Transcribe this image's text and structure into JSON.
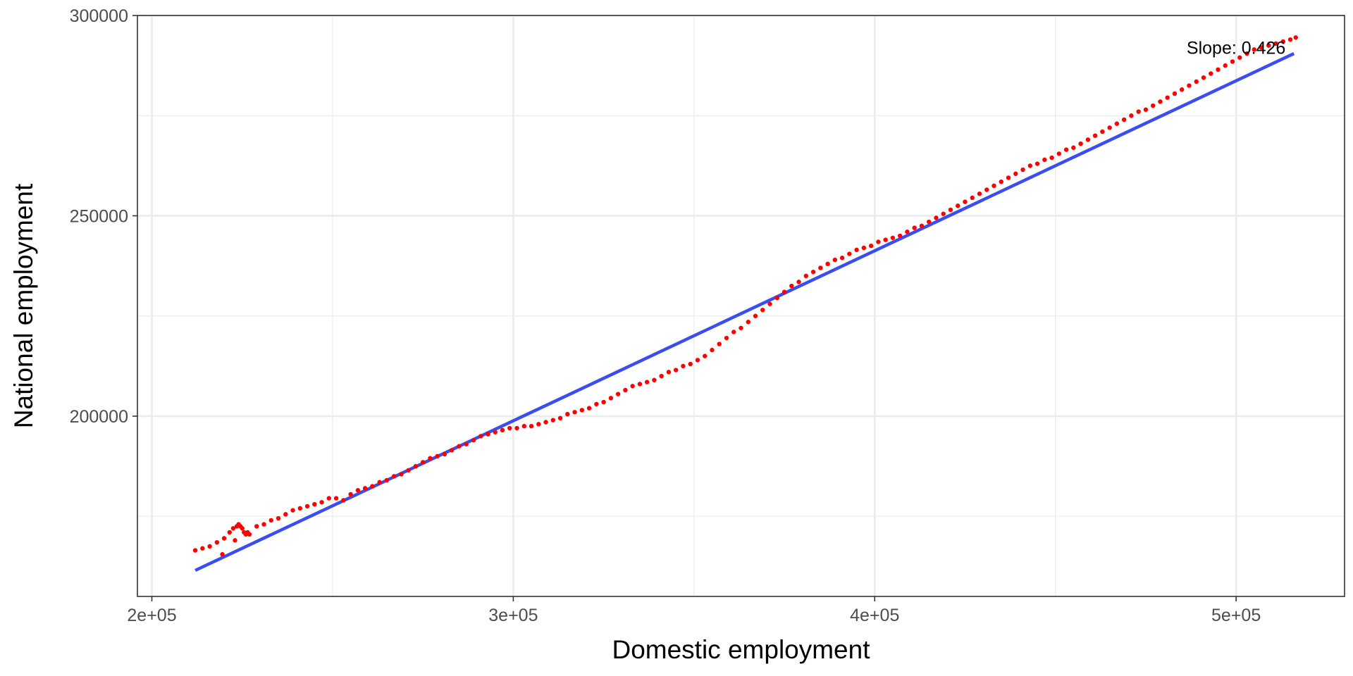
{
  "chart_data": {
    "type": "scatter",
    "title": "",
    "xlabel": "Domestic employment",
    "ylabel": "National employment",
    "xlim": [
      196000,
      530000
    ],
    "ylim": [
      155000,
      300000
    ],
    "x_ticks": [
      200000,
      300000,
      400000,
      500000
    ],
    "x_tick_labels": [
      "2e+05",
      "3e+05",
      "4e+05",
      "5e+05"
    ],
    "y_ticks": [
      200000,
      250000,
      300000
    ],
    "y_tick_labels": [
      "200000",
      "250000",
      "300000"
    ],
    "grid": true,
    "legend": "none",
    "colors": {
      "points": "#ff0000",
      "fit_line": "#3a4ef0",
      "grid": "#ebebeb",
      "panel_border": "#333333"
    },
    "fit_line": {
      "x": [
        212000,
        516000
      ],
      "y": [
        161500,
        290500
      ]
    },
    "annotation": {
      "text": "Slope:  0.426",
      "x": 500000,
      "y": 292000
    },
    "points": {
      "x": [
        212000,
        214000,
        216000,
        218000,
        220000,
        221500,
        222500,
        223500,
        224000,
        224500,
        225000,
        225500,
        226000,
        226500,
        227000,
        219500,
        223000,
        229000,
        231000,
        233000,
        235000,
        237000,
        239000,
        241000,
        243000,
        245000,
        247000,
        249000,
        251000,
        253000,
        255000,
        257000,
        259000,
        261000,
        263000,
        265000,
        267000,
        269000,
        271000,
        273000,
        275000,
        277000,
        279000,
        281000,
        283000,
        285000,
        287000,
        289000,
        291000,
        293000,
        295000,
        297000,
        299000,
        301000,
        303000,
        305000,
        307000,
        309000,
        311000,
        313000,
        315000,
        317000,
        319000,
        321000,
        323000,
        325000,
        327000,
        329000,
        331000,
        333000,
        335000,
        337000,
        339000,
        341000,
        343000,
        345000,
        347000,
        349000,
        351000,
        353000,
        355000,
        357000,
        359000,
        361000,
        363000,
        365000,
        367000,
        369000,
        371000,
        373000,
        375000,
        377000,
        379000,
        381000,
        383000,
        385000,
        387000,
        389000,
        391000,
        393000,
        395000,
        397000,
        399000,
        401000,
        403000,
        405000,
        407000,
        409000,
        411000,
        413000,
        415000,
        417000,
        419000,
        421000,
        423000,
        425000,
        427000,
        429000,
        431000,
        433000,
        435000,
        437000,
        439000,
        441000,
        443000,
        445000,
        447000,
        449000,
        451000,
        453000,
        455000,
        457000,
        459000,
        461000,
        463000,
        465000,
        467000,
        469000,
        471000,
        473000,
        475000,
        477000,
        479000,
        481000,
        483000,
        485000,
        487000,
        489000,
        491000,
        493000,
        495000,
        497000,
        499000,
        501000,
        503000,
        505000,
        507000,
        509000,
        511000,
        513000,
        515000,
        516500
      ],
      "y": [
        166500,
        167000,
        167500,
        168500,
        169500,
        171000,
        172000,
        172500,
        173000,
        172500,
        172000,
        171000,
        170500,
        171000,
        170500,
        165500,
        169000,
        172500,
        173000,
        174000,
        174500,
        175500,
        176500,
        177000,
        177500,
        178000,
        178500,
        179500,
        179500,
        179000,
        180500,
        181500,
        182000,
        182500,
        183500,
        184000,
        185000,
        185500,
        186500,
        187500,
        188500,
        189500,
        190000,
        190500,
        191500,
        192500,
        193000,
        194000,
        195000,
        195500,
        196000,
        196500,
        197000,
        197000,
        197500,
        197500,
        198000,
        198500,
        199000,
        199500,
        200500,
        201000,
        201500,
        202000,
        203000,
        203500,
        204500,
        205500,
        206500,
        207500,
        208000,
        208500,
        209000,
        210000,
        211000,
        211500,
        212500,
        213000,
        214000,
        215000,
        216500,
        218000,
        219500,
        221000,
        222000,
        223500,
        225000,
        226500,
        228000,
        229500,
        231000,
        232500,
        233500,
        235000,
        236000,
        237000,
        238000,
        239000,
        239500,
        240500,
        241500,
        242000,
        242500,
        243500,
        244000,
        244500,
        245000,
        246000,
        247000,
        247500,
        248500,
        249500,
        250500,
        251500,
        252500,
        253500,
        254500,
        255500,
        256500,
        257500,
        258500,
        259500,
        260500,
        261500,
        262500,
        263000,
        264000,
        264500,
        265500,
        266500,
        267000,
        268000,
        269000,
        270000,
        271000,
        272000,
        273000,
        274000,
        275000,
        276000,
        276500,
        277500,
        278500,
        279500,
        280500,
        281500,
        282500,
        283500,
        284500,
        285500,
        286500,
        287500,
        288500,
        289500,
        290500,
        291500,
        292000,
        292500,
        293000,
        293500,
        294000,
        294500
      ]
    }
  }
}
